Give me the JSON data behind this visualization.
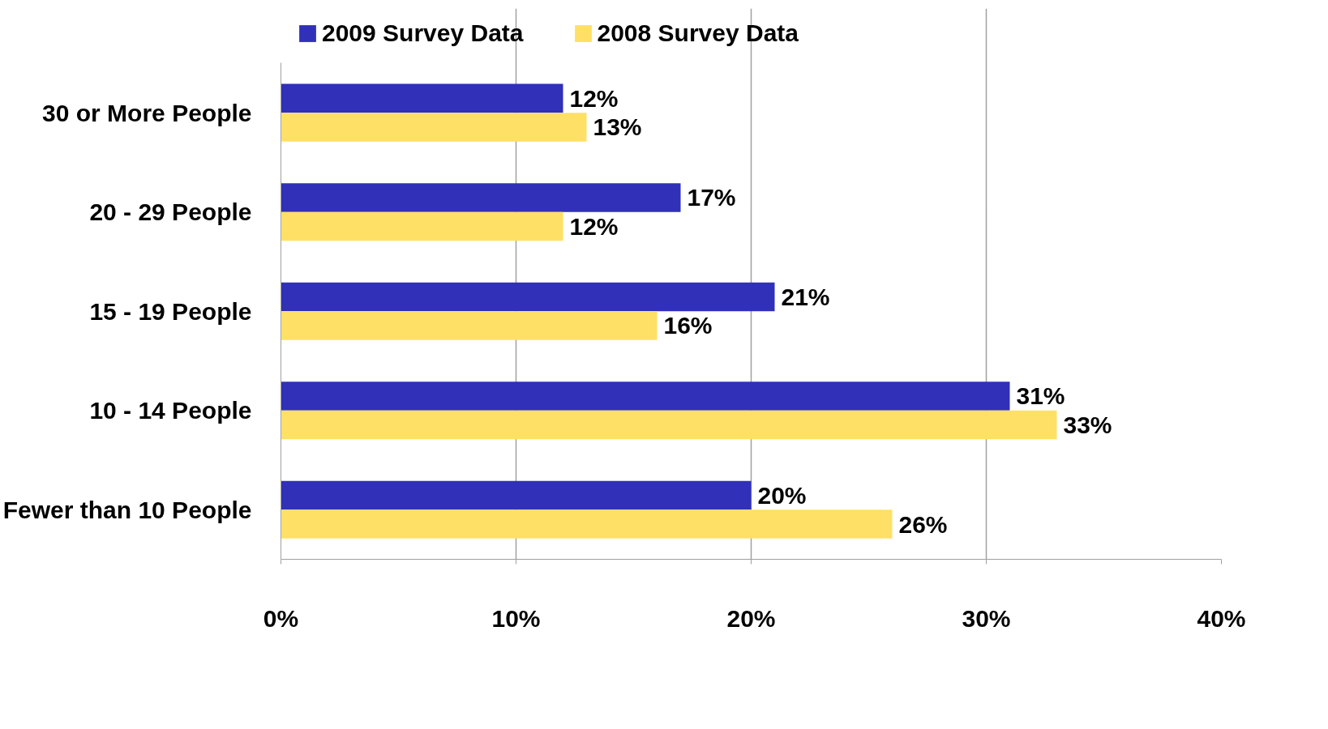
{
  "chart_data": {
    "type": "bar",
    "orientation": "horizontal",
    "categories": [
      "30 or More People",
      "20 - 29 People",
      "15 - 19 People",
      "10 - 14 People",
      "Fewer than 10 People"
    ],
    "series": [
      {
        "name": "2009 Survey Data",
        "color": "#3030b8",
        "values": [
          12,
          17,
          21,
          31,
          20
        ],
        "value_labels": [
          "12%",
          "17%",
          "21%",
          "31%",
          "20%"
        ]
      },
      {
        "name": "2008 Survey Data",
        "color": "#ffe066",
        "values": [
          13,
          12,
          16,
          33,
          26
        ],
        "value_labels": [
          "13%",
          "12%",
          "16%",
          "33%",
          "26%"
        ]
      }
    ],
    "xlim": [
      0,
      40
    ],
    "xticks": [
      {
        "value": 0,
        "label": "0%"
      },
      {
        "value": 10,
        "label": "10%"
      },
      {
        "value": 20,
        "label": "20%"
      },
      {
        "value": 30,
        "label": "30%"
      },
      {
        "value": 40,
        "label": "40%"
      }
    ],
    "grid": "x",
    "legend": "top"
  }
}
